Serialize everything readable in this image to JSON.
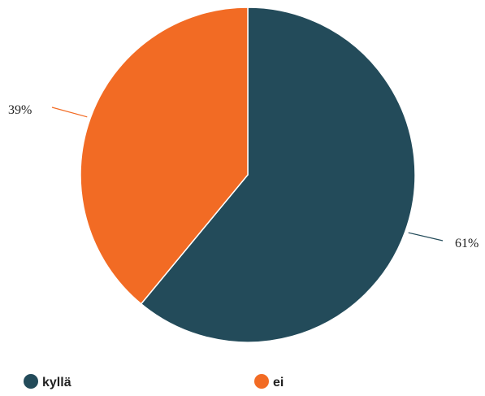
{
  "chart_data": {
    "type": "pie",
    "title": "",
    "categories": [
      "kyllä",
      "ei"
    ],
    "values": [
      61,
      39
    ],
    "labels": [
      "61%",
      "39%"
    ],
    "colors": [
      "#234b5a",
      "#f26b24"
    ],
    "start_angle_deg": 0,
    "direction": "clockwise",
    "legend_position": "bottom"
  }
}
